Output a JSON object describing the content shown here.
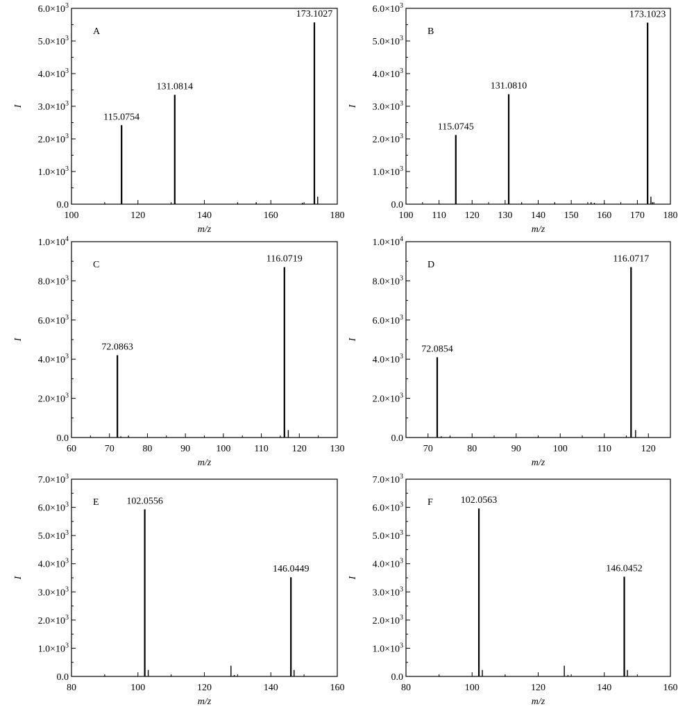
{
  "figure": {
    "panels": [
      {
        "letter": "A",
        "ylabel": "I",
        "xlabel": "m/z"
      },
      {
        "letter": "B",
        "ylabel": "I",
        "xlabel": "m/z"
      },
      {
        "letter": "C",
        "ylabel": "I",
        "xlabel": "m/z"
      },
      {
        "letter": "D",
        "ylabel": "I",
        "xlabel": "m/z"
      },
      {
        "letter": "E",
        "ylabel": "I",
        "xlabel": "m/z"
      },
      {
        "letter": "F",
        "ylabel": "I",
        "xlabel": "m/z"
      }
    ]
  },
  "chart_data": [
    {
      "type": "bar",
      "panel": "A",
      "xlabel": "m/z",
      "ylabel": "I",
      "xlim": [
        100,
        180
      ],
      "ylim": [
        0,
        6000
      ],
      "xticks": [
        100,
        120,
        140,
        160,
        180
      ],
      "xtick_labels": [
        "100",
        "120",
        "140",
        "160",
        "180"
      ],
      "yticks": [
        0,
        1000,
        2000,
        3000,
        4000,
        5000,
        6000
      ],
      "ytick_labels": [
        "0.0",
        "1.0×10³",
        "2.0×10³",
        "3.0×10³",
        "4.0×10³",
        "5.0×10³",
        "6.0×10³"
      ],
      "peaks": [
        {
          "x": 115.0754,
          "y": 2420,
          "label": "115.0754"
        },
        {
          "x": 131.0814,
          "y": 3350,
          "label": "131.0814"
        },
        {
          "x": 173.1027,
          "y": 5570,
          "label": "173.1027"
        },
        {
          "x": 174.1,
          "y": 230
        },
        {
          "x": 110.0,
          "y": 20
        },
        {
          "x": 130.0,
          "y": 30
        },
        {
          "x": 150.0,
          "y": 30
        },
        {
          "x": 155.6,
          "y": 60
        },
        {
          "x": 169.5,
          "y": 40
        }
      ]
    },
    {
      "type": "bar",
      "panel": "B",
      "xlabel": "m/z",
      "ylabel": "I",
      "xlim": [
        100,
        180
      ],
      "ylim": [
        0,
        6000
      ],
      "xticks": [
        100,
        110,
        120,
        130,
        140,
        150,
        160,
        170,
        180
      ],
      "xtick_labels": [
        "100",
        "110",
        "120",
        "130",
        "140",
        "150",
        "160",
        "170",
        "180"
      ],
      "yticks": [
        0,
        1000,
        2000,
        3000,
        4000,
        5000,
        6000
      ],
      "ytick_labels": [
        "0.0",
        "1.0×10³",
        "2.0×10³",
        "3.0×10³",
        "4.0×10³",
        "5.0×10³",
        "6.0×10³"
      ],
      "peaks": [
        {
          "x": 115.0745,
          "y": 2120,
          "label": "115.0745"
        },
        {
          "x": 131.081,
          "y": 3370,
          "label": "131.0810"
        },
        {
          "x": 173.1023,
          "y": 5560,
          "label": "173.1023"
        },
        {
          "x": 174.1,
          "y": 230
        },
        {
          "x": 174.6,
          "y": 60
        },
        {
          "x": 156.0,
          "y": 60
        },
        {
          "x": 157.0,
          "y": 40
        },
        {
          "x": 145.0,
          "y": 30
        },
        {
          "x": 135.0,
          "y": 30
        },
        {
          "x": 160.0,
          "y": 30
        }
      ]
    },
    {
      "type": "bar",
      "panel": "C",
      "xlabel": "m/z",
      "ylabel": "I",
      "xlim": [
        60,
        130
      ],
      "ylim": [
        0,
        10000
      ],
      "xticks": [
        60,
        70,
        80,
        90,
        100,
        110,
        120,
        130
      ],
      "xtick_labels": [
        "60",
        "70",
        "80",
        "90",
        "100",
        "110",
        "120",
        "130"
      ],
      "yticks": [
        0,
        2000,
        4000,
        6000,
        8000,
        10000
      ],
      "ytick_labels": [
        "0.0",
        "2.0×10³",
        "4.0×10³",
        "6.0×10³",
        "8.0×10³",
        "1.0×10⁴"
      ],
      "peaks": [
        {
          "x": 72.0863,
          "y": 4200,
          "label": "72.0863"
        },
        {
          "x": 116.0719,
          "y": 8700,
          "label": "116.0719"
        },
        {
          "x": 117.1,
          "y": 380
        },
        {
          "x": 73.0,
          "y": 60
        },
        {
          "x": 75.0,
          "y": 60
        },
        {
          "x": 115.0,
          "y": 50
        }
      ]
    },
    {
      "type": "bar",
      "panel": "D",
      "xlabel": "m/z",
      "ylabel": "I",
      "xlim": [
        65,
        125
      ],
      "ylim": [
        0,
        10000
      ],
      "xticks": [
        70,
        80,
        90,
        100,
        110,
        120
      ],
      "xtick_labels": [
        "70",
        "80",
        "90",
        "100",
        "110",
        "120"
      ],
      "yticks": [
        0,
        2000,
        4000,
        6000,
        8000,
        10000
      ],
      "ytick_labels": [
        "0.0",
        "2.0×10³",
        "4.0×10³",
        "6.0×10³",
        "8.0×10³",
        "1.0×10⁴"
      ],
      "peaks": [
        {
          "x": 72.0854,
          "y": 4100,
          "label": "72.0854"
        },
        {
          "x": 116.0717,
          "y": 8700,
          "label": "116.0717"
        },
        {
          "x": 117.1,
          "y": 380
        },
        {
          "x": 73.0,
          "y": 60
        },
        {
          "x": 75.0,
          "y": 60
        },
        {
          "x": 115.0,
          "y": 50
        }
      ]
    },
    {
      "type": "bar",
      "panel": "E",
      "xlabel": "m/z",
      "ylabel": "I",
      "xlim": [
        80,
        160
      ],
      "ylim": [
        0,
        7000
      ],
      "xticks": [
        80,
        100,
        120,
        140,
        160
      ],
      "xtick_labels": [
        "80",
        "100",
        "120",
        "140",
        "160"
      ],
      "yticks": [
        0,
        1000,
        2000,
        3000,
        4000,
        5000,
        6000,
        7000
      ],
      "ytick_labels": [
        "0.0",
        "1.0×10³",
        "2.0×10³",
        "3.0×10³",
        "4.0×10³",
        "5.0×10³",
        "6.0×10³",
        "7.0×10³"
      ],
      "peaks": [
        {
          "x": 102.0556,
          "y": 5930,
          "label": "102.0556"
        },
        {
          "x": 146.0449,
          "y": 3520,
          "label": "146.0449"
        },
        {
          "x": 103.1,
          "y": 230
        },
        {
          "x": 128.0,
          "y": 380
        },
        {
          "x": 147.0,
          "y": 230
        },
        {
          "x": 90.0,
          "y": 30
        },
        {
          "x": 110.0,
          "y": 30
        },
        {
          "x": 129.0,
          "y": 50
        }
      ]
    },
    {
      "type": "bar",
      "panel": "F",
      "xlabel": "m/z",
      "ylabel": "I",
      "xlim": [
        80,
        160
      ],
      "ylim": [
        0,
        7000
      ],
      "xticks": [
        80,
        100,
        120,
        140,
        160
      ],
      "xtick_labels": [
        "80",
        "100",
        "120",
        "140",
        "160"
      ],
      "yticks": [
        0,
        1000,
        2000,
        3000,
        4000,
        5000,
        6000,
        7000
      ],
      "ytick_labels": [
        "0.0",
        "1.0×10³",
        "2.0×10³",
        "3.0×10³",
        "4.0×10³",
        "5.0×10³",
        "6.0×10³",
        "7.0×10³"
      ],
      "peaks": [
        {
          "x": 102.0563,
          "y": 5960,
          "label": "102.0563"
        },
        {
          "x": 146.0452,
          "y": 3540,
          "label": "146.0452"
        },
        {
          "x": 103.1,
          "y": 230
        },
        {
          "x": 127.9,
          "y": 380
        },
        {
          "x": 147.0,
          "y": 230
        },
        {
          "x": 90.0,
          "y": 30
        },
        {
          "x": 110.0,
          "y": 30
        },
        {
          "x": 129.0,
          "y": 50
        }
      ]
    }
  ]
}
